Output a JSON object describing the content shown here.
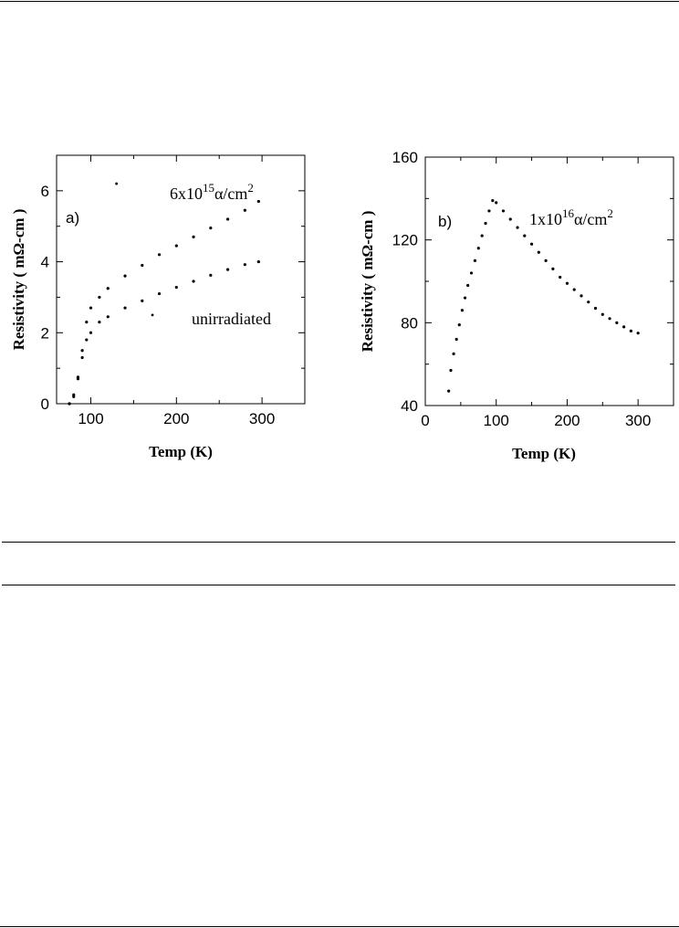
{
  "chart_data": [
    {
      "panel": "a)",
      "type": "scatter",
      "xlabel": "Temp (K)",
      "ylabel": "Resistivity ( mΩ-cm )",
      "xlim": [
        60,
        350
      ],
      "ylim": [
        0,
        7
      ],
      "xticks": [
        100,
        200,
        300
      ],
      "yticks": [
        0,
        2,
        4,
        6
      ],
      "grid": false,
      "series": [
        {
          "name": "6x10^15 α/cm^2",
          "label_parts": [
            "6x10",
            "15",
            "α/cm",
            "2"
          ],
          "x": [
            75,
            80,
            85,
            90,
            95,
            100,
            110,
            120,
            140,
            160,
            180,
            200,
            220,
            240,
            260,
            280,
            296
          ],
          "y": [
            0.0,
            0.25,
            0.75,
            1.5,
            2.3,
            2.7,
            3.0,
            3.25,
            3.6,
            3.9,
            4.2,
            4.45,
            4.7,
            4.95,
            5.2,
            5.45,
            5.7
          ]
        },
        {
          "name": "unirradiated",
          "label_parts": [
            "unirradiated"
          ],
          "x": [
            75,
            80,
            85,
            90,
            95,
            100,
            110,
            120,
            140,
            160,
            180,
            200,
            220,
            240,
            260,
            280,
            296
          ],
          "y": [
            0.0,
            0.2,
            0.7,
            1.3,
            1.8,
            2.0,
            2.3,
            2.45,
            2.7,
            2.9,
            3.1,
            3.28,
            3.45,
            3.62,
            3.78,
            3.92,
            4.0
          ]
        }
      ],
      "stray_points": [
        {
          "x": 130,
          "y": 6.2
        },
        {
          "x": 172,
          "y": 2.5
        }
      ]
    },
    {
      "panel": "b)",
      "type": "scatter",
      "xlabel": "Temp (K)",
      "ylabel": "Resistivity ( mΩ-cm )",
      "xlim": [
        0,
        350
      ],
      "ylim": [
        40,
        160
      ],
      "xticks": [
        0,
        100,
        200,
        300
      ],
      "yticks": [
        40,
        80,
        120,
        160
      ],
      "grid": false,
      "series": [
        {
          "name": "1x10^16 α/cm^2",
          "label_parts": [
            "1x10",
            "16",
            "α/cm",
            "2"
          ],
          "x": [
            33,
            36,
            40,
            44,
            48,
            52,
            56,
            60,
            65,
            70,
            75,
            80,
            85,
            90,
            95,
            100,
            110,
            120,
            130,
            140,
            150,
            160,
            170,
            180,
            190,
            200,
            210,
            220,
            230,
            240,
            250,
            260,
            270,
            280,
            290,
            300
          ],
          "y": [
            47,
            57,
            65,
            72,
            79,
            86,
            92,
            98,
            104,
            110,
            116,
            122,
            128,
            134,
            139,
            138,
            134,
            130,
            126,
            122,
            118,
            114,
            110,
            106,
            102,
            99,
            96,
            93,
            90,
            87,
            84,
            82,
            80,
            78,
            76,
            75
          ]
        }
      ]
    }
  ]
}
